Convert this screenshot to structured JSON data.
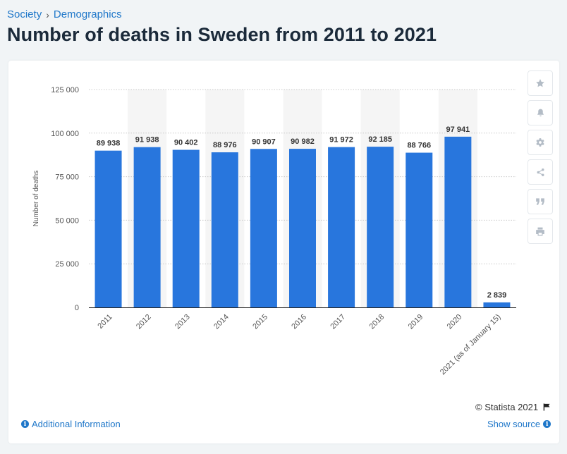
{
  "breadcrumb": {
    "items": [
      "Society",
      "Demographics"
    ],
    "separator": "›"
  },
  "page": {
    "title": "Number of deaths in Sweden from 2011 to 2021"
  },
  "side_toolbar": [
    {
      "name": "favorite",
      "icon": "star-icon"
    },
    {
      "name": "notification",
      "icon": "bell-icon"
    },
    {
      "name": "settings",
      "icon": "gear-icon"
    },
    {
      "name": "share",
      "icon": "share-icon"
    },
    {
      "name": "cite",
      "icon": "quote-icon"
    },
    {
      "name": "print",
      "icon": "print-icon"
    }
  ],
  "footer": {
    "copyright": "© Statista 2021",
    "additional_info": "Additional Information",
    "show_source": "Show source"
  },
  "colors": {
    "bar": "#2876dd",
    "accent": "#1f77c9",
    "band": "#f5f5f5"
  },
  "chart_data": {
    "type": "bar",
    "categories": [
      "2011",
      "2012",
      "2013",
      "2014",
      "2015",
      "2016",
      "2017",
      "2018",
      "2019",
      "2020",
      "2021 (as of January 15)"
    ],
    "values": [
      89938,
      91938,
      90402,
      88976,
      90907,
      90982,
      91972,
      92185,
      88766,
      97941,
      2839
    ],
    "value_labels": [
      "89 938",
      "91 938",
      "90 402",
      "88 976",
      "90 907",
      "90 982",
      "91 972",
      "92 185",
      "88 766",
      "97 941",
      "2 839"
    ],
    "ylabel": "Number of deaths",
    "xlabel": "",
    "ylim": [
      0,
      125000
    ],
    "yticks": [
      0,
      25000,
      50000,
      75000,
      100000,
      125000
    ],
    "ytick_labels": [
      "0",
      "25 000",
      "50 000",
      "75 000",
      "100 000",
      "125 000"
    ],
    "grid": true,
    "legend": "none"
  }
}
